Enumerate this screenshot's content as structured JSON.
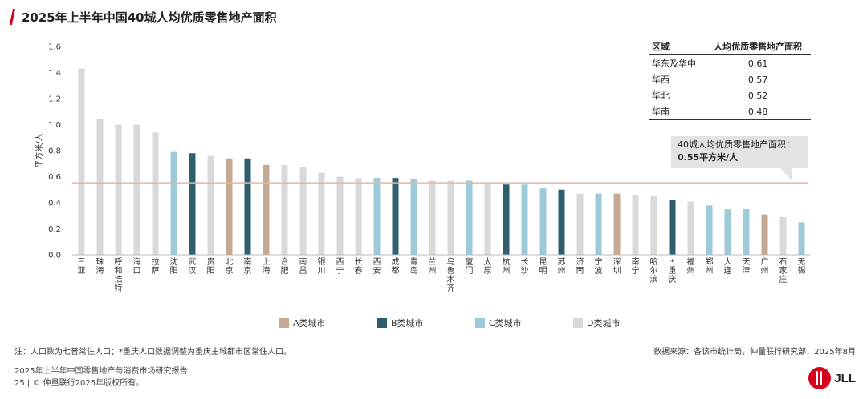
{
  "header": {
    "title": "2025年上半年中国40城人均优质零售地产面积"
  },
  "chart_data": {
    "type": "bar",
    "title": "2025年上半年中国40城人均优质零售地产面积",
    "ylabel": "平方米/人",
    "ylim": [
      0,
      1.6
    ],
    "yticks": [
      "0.0",
      "0.2",
      "0.4",
      "0.6",
      "0.8",
      "1.0",
      "1.2",
      "1.4",
      "1.6"
    ],
    "categories": [
      "三亚",
      "珠海",
      "呼和浩特",
      "海口",
      "拉萨",
      "沈阳",
      "武汉",
      "贵阳",
      "北京",
      "南京",
      "上海",
      "合肥",
      "南昌",
      "银川",
      "西宁",
      "长春",
      "西安",
      "成都",
      "青岛",
      "兰州",
      "乌鲁木齐",
      "厦门",
      "太原",
      "杭州",
      "长沙",
      "昆明",
      "苏州",
      "济南",
      "宁波",
      "深圳",
      "南宁",
      "哈尔滨",
      "*重庆",
      "福州",
      "郑州",
      "大连",
      "天津",
      "广州",
      "石家庄",
      "无锡"
    ],
    "values": [
      1.43,
      1.04,
      1.0,
      1.0,
      0.94,
      0.79,
      0.78,
      0.76,
      0.74,
      0.74,
      0.69,
      0.69,
      0.67,
      0.63,
      0.6,
      0.59,
      0.59,
      0.59,
      0.58,
      0.57,
      0.57,
      0.57,
      0.55,
      0.54,
      0.54,
      0.51,
      0.5,
      0.47,
      0.47,
      0.47,
      0.46,
      0.45,
      0.42,
      0.41,
      0.38,
      0.35,
      0.35,
      0.31,
      0.29,
      0.25
    ],
    "classes": [
      "D",
      "D",
      "D",
      "D",
      "D",
      "C",
      "B",
      "D",
      "A",
      "B",
      "A",
      "D",
      "D",
      "D",
      "D",
      "D",
      "C",
      "B",
      "C",
      "D",
      "D",
      "C",
      "D",
      "B",
      "C",
      "C",
      "B",
      "D",
      "C",
      "A",
      "D",
      "D",
      "B",
      "D",
      "C",
      "C",
      "C",
      "A",
      "D",
      "C"
    ],
    "average": {
      "value": 0.55,
      "label": "40城人均优质零售地产面积：",
      "value_text": "0.55平方米/人"
    },
    "legend": [
      {
        "key": "A",
        "name": "A类城市",
        "color": "#c4a993"
      },
      {
        "key": "B",
        "name": "B类城市",
        "color": "#2f5f6e"
      },
      {
        "key": "C",
        "name": "C类城市",
        "color": "#9ccad9"
      },
      {
        "key": "D",
        "name": "D类城市",
        "color": "#d9d9d9"
      }
    ],
    "average_line_color": "#e0b9a3",
    "grid": false
  },
  "region_table": {
    "headers": [
      "区域",
      "人均优质零售地产面积"
    ],
    "rows": [
      {
        "region": "华东及华中",
        "value": "0.61"
      },
      {
        "region": "华西",
        "value": "0.57"
      },
      {
        "region": "华北",
        "value": "0.52"
      },
      {
        "region": "华南",
        "value": "0.48"
      }
    ]
  },
  "notes": {
    "note": "注：人口数为七普常住人口；*重庆人口数据调整为重庆主城都市区常住人口。",
    "source": "数据来源：各该市统计局，仲量联行研究部，2025年8月"
  },
  "footer": {
    "line1": "2025年上半年中国零售地产与消费市场研究报告",
    "line2": "25 | © 仲量联行2025年版权所有。"
  },
  "logo": {
    "text": "JLL",
    "color": "#d6001c"
  }
}
